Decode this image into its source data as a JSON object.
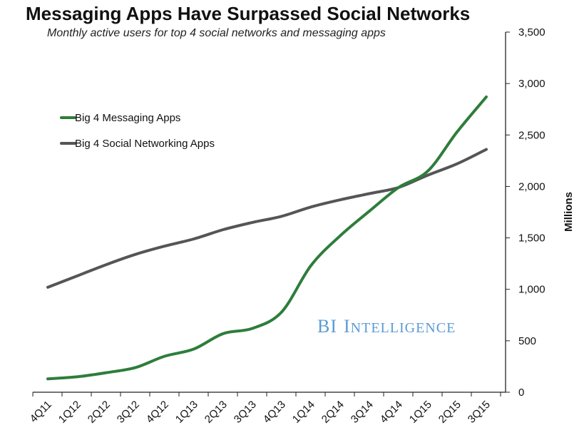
{
  "chart_data": {
    "type": "line",
    "title": "Messaging Apps Have Surpassed Social Networks",
    "subtitle": "Monthly active users for top 4 social networks and messaging apps",
    "categories": [
      "4Q11",
      "1Q12",
      "2Q12",
      "3Q12",
      "4Q12",
      "1Q13",
      "2Q13",
      "3Q13",
      "4Q13",
      "1Q14",
      "2Q14",
      "3Q14",
      "4Q14",
      "1Q15",
      "2Q15",
      "3Q15"
    ],
    "series": [
      {
        "name": "Big 4 Messaging Apps",
        "color": "#2e7d3b",
        "values": [
          130,
          150,
          190,
          240,
          350,
          420,
          570,
          620,
          780,
          1230,
          1520,
          1760,
          1990,
          2150,
          2530,
          2870
        ]
      },
      {
        "name": "Big 4 Social Networking Apps",
        "color": "#555555",
        "values": [
          1020,
          1130,
          1240,
          1340,
          1420,
          1490,
          1580,
          1650,
          1710,
          1800,
          1870,
          1930,
          1990,
          2110,
          2220,
          2360
        ]
      }
    ],
    "xlabel": "",
    "ylabel": "Millions",
    "ylim": [
      0,
      3500
    ],
    "yticks": [
      "0",
      "500",
      "1,000",
      "1,500",
      "2,000",
      "2,500",
      "3,000",
      "3,500"
    ],
    "ytick_values": [
      0,
      500,
      1000,
      1500,
      2000,
      2500,
      3000,
      3500
    ],
    "legend_position": "top-left",
    "y_axis_side": "right",
    "watermark": {
      "first": "BI",
      "initial": "I",
      "rest": "NTELLIGENCE"
    }
  }
}
